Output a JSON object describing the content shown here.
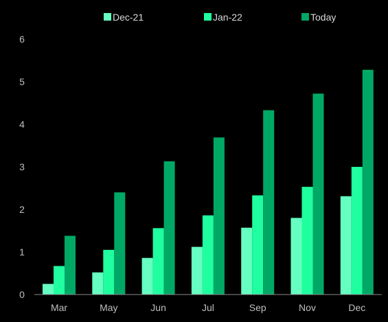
{
  "chart_data": {
    "type": "bar",
    "categories": [
      "Mar",
      "May",
      "Jun",
      "Jul",
      "Sep",
      "Nov",
      "Dec"
    ],
    "series": [
      {
        "name": "Dec-21",
        "color": "#66ffc2",
        "values": [
          0.25,
          0.52,
          0.86,
          1.12,
          1.57,
          1.8,
          2.31
        ]
      },
      {
        "name": "Jan-22",
        "color": "#1fff9f",
        "values": [
          0.67,
          1.05,
          1.56,
          1.86,
          2.33,
          2.53,
          3.0
        ]
      },
      {
        "name": "Today",
        "color": "#00a865",
        "values": [
          1.38,
          2.4,
          3.13,
          3.69,
          4.33,
          4.72,
          5.28
        ]
      }
    ],
    "yticks": [
      0,
      1,
      2,
      3,
      4,
      5,
      6
    ],
    "ylim": [
      0,
      6
    ],
    "legend_position": "top-center",
    "grid": false
  }
}
